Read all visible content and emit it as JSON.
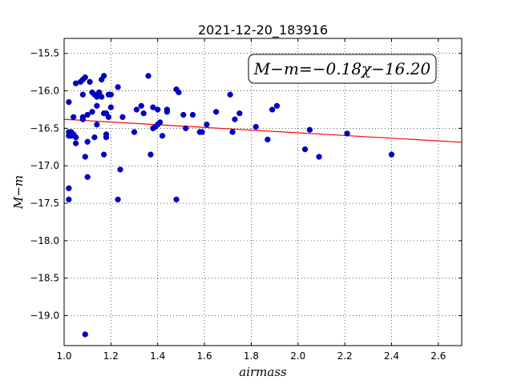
{
  "chart_data": {
    "type": "scatter",
    "title": "2021-12-20_183916",
    "xlabel": "airmass",
    "ylabel": "M−m",
    "xlim": [
      1.0,
      2.7
    ],
    "ylim": [
      -19.4,
      -15.3
    ],
    "y_inverted": true,
    "grid": true,
    "x_ticks": [
      "1.0",
      "1.2",
      "1.4",
      "1.6",
      "1.8",
      "2.0",
      "2.2",
      "2.4",
      "2.6"
    ],
    "y_ticks": [
      "−15.5",
      "−16.0",
      "−16.5",
      "−17.0",
      "−17.5",
      "−18.0",
      "−18.5",
      "−19.0"
    ],
    "fit_label": "M−m=−0.18χ−16.20",
    "fit_line": {
      "slope": -0.18,
      "intercept": -16.2,
      "color": "#ff0000"
    },
    "marker_color": "#0000cc",
    "points": [
      [
        1.02,
        -16.55
      ],
      [
        1.02,
        -17.3
      ],
      [
        1.02,
        -17.45
      ],
      [
        1.02,
        -16.15
      ],
      [
        1.02,
        -16.6
      ],
      [
        1.03,
        -16.55
      ],
      [
        1.03,
        -16.6
      ],
      [
        1.04,
        -16.58
      ],
      [
        1.04,
        -16.35
      ],
      [
        1.05,
        -16.62
      ],
      [
        1.05,
        -16.7
      ],
      [
        1.05,
        -15.9
      ],
      [
        1.07,
        -15.88
      ],
      [
        1.08,
        -16.05
      ],
      [
        1.08,
        -16.35
      ],
      [
        1.08,
        -16.38
      ],
      [
        1.08,
        -15.85
      ],
      [
        1.09,
        -15.82
      ],
      [
        1.09,
        -16.88
      ],
      [
        1.1,
        -17.15
      ],
      [
        1.1,
        -16.68
      ],
      [
        1.1,
        -16.32
      ],
      [
        1.11,
        -15.88
      ],
      [
        1.12,
        -16.02
      ],
      [
        1.12,
        -16.28
      ],
      [
        1.13,
        -16.62
      ],
      [
        1.13,
        -16.05
      ],
      [
        1.14,
        -16.08
      ],
      [
        1.14,
        -16.45
      ],
      [
        1.14,
        -16.2
      ],
      [
        1.15,
        -16.05
      ],
      [
        1.15,
        -16.02
      ],
      [
        1.16,
        -15.85
      ],
      [
        1.16,
        -16.08
      ],
      [
        1.17,
        -15.8
      ],
      [
        1.17,
        -16.3
      ],
      [
        1.17,
        -16.85
      ],
      [
        1.18,
        -16.3
      ],
      [
        1.18,
        -16.62
      ],
      [
        1.18,
        -16.58
      ],
      [
        1.19,
        -16.05
      ],
      [
        1.19,
        -16.35
      ],
      [
        1.2,
        -16.22
      ],
      [
        1.2,
        -16.05
      ],
      [
        1.23,
        -15.95
      ],
      [
        1.23,
        -17.45
      ],
      [
        1.24,
        -17.05
      ],
      [
        1.25,
        -16.35
      ],
      [
        1.3,
        -16.55
      ],
      [
        1.31,
        -16.25
      ],
      [
        1.33,
        -16.2
      ],
      [
        1.34,
        -16.3
      ],
      [
        1.36,
        -15.8
      ],
      [
        1.37,
        -16.85
      ],
      [
        1.38,
        -16.22
      ],
      [
        1.38,
        -16.5
      ],
      [
        1.39,
        -16.48
      ],
      [
        1.4,
        -16.25
      ],
      [
        1.4,
        -16.45
      ],
      [
        1.41,
        -16.42
      ],
      [
        1.42,
        -16.6
      ],
      [
        1.44,
        -16.25
      ],
      [
        1.44,
        -16.28
      ],
      [
        1.48,
        -17.45
      ],
      [
        1.48,
        -15.98
      ],
      [
        1.49,
        -16.02
      ],
      [
        1.51,
        -16.32
      ],
      [
        1.52,
        -16.5
      ],
      [
        1.55,
        -16.32
      ],
      [
        1.58,
        -16.55
      ],
      [
        1.59,
        -16.55
      ],
      [
        1.61,
        -16.45
      ],
      [
        1.65,
        -16.28
      ],
      [
        1.71,
        -16.05
      ],
      [
        1.72,
        -16.55
      ],
      [
        1.73,
        -16.38
      ],
      [
        1.75,
        -16.3
      ],
      [
        1.82,
        -16.48
      ],
      [
        1.87,
        -16.65
      ],
      [
        1.89,
        -16.25
      ],
      [
        1.91,
        -16.2
      ],
      [
        2.03,
        -16.78
      ],
      [
        2.05,
        -16.52
      ],
      [
        2.09,
        -16.88
      ],
      [
        2.21,
        -16.57
      ],
      [
        2.4,
        -16.85
      ],
      [
        1.09,
        -19.25
      ]
    ]
  }
}
